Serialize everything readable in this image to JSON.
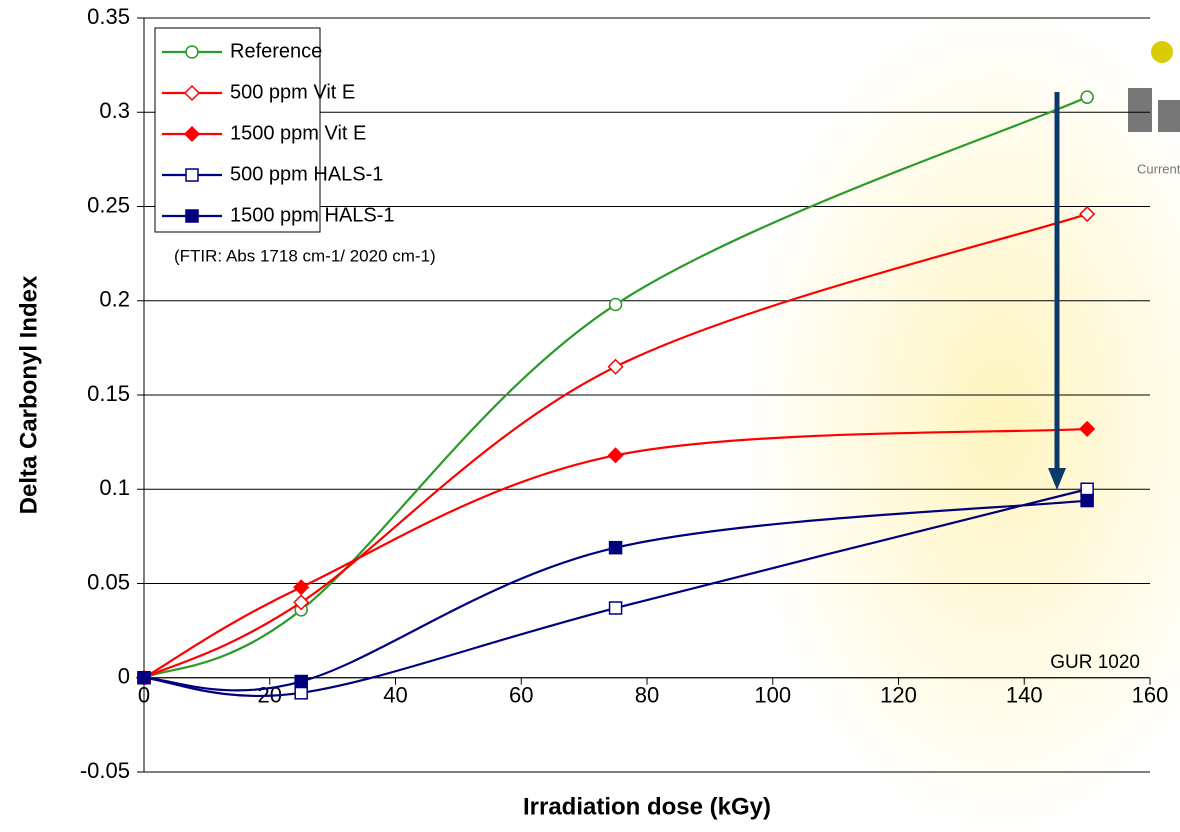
{
  "chart_data": {
    "type": "line",
    "x_label": "Irradiation dose (kGy)",
    "y_label": "Delta Carbonyl Index",
    "x": [
      0,
      25,
      75,
      150
    ],
    "series": [
      {
        "name": "Reference",
        "color": "#2a9a2a",
        "marker": "circle-open",
        "values": [
          0,
          0.036,
          0.198,
          0.308
        ]
      },
      {
        "name": "500 ppm Vit E",
        "color": "#ff0000",
        "marker": "diamond-open",
        "values": [
          0,
          0.04,
          0.165,
          0.246
        ]
      },
      {
        "name": "1500 ppm Vit E",
        "color": "#ff0000",
        "marker": "diamond-filled",
        "values": [
          0,
          0.048,
          0.118,
          0.132
        ]
      },
      {
        "name": "500 ppm HALS-1",
        "color": "#00007f",
        "marker": "square-open",
        "values": [
          0,
          -0.008,
          0.037,
          0.1
        ]
      },
      {
        "name": "1500 ppm HALS-1",
        "color": "#00007f",
        "marker": "square-filled",
        "values": [
          0,
          -0.002,
          0.069,
          0.094
        ]
      }
    ],
    "xlim": [
      0,
      160
    ],
    "xticks": [
      0,
      20,
      40,
      60,
      80,
      100,
      120,
      140,
      160
    ],
    "ylim": [
      -0.05,
      0.35
    ],
    "yticks": [
      -0.05,
      0,
      0.05,
      0.1,
      0.15,
      0.2,
      0.25,
      0.3,
      0.35
    ],
    "grid": true,
    "legend": "upper left",
    "annotations": [
      "(FTIR: Abs 1718 cm-1/ 2020 cm-1)",
      "GUR 1020"
    ],
    "logo_text": "Current"
  }
}
